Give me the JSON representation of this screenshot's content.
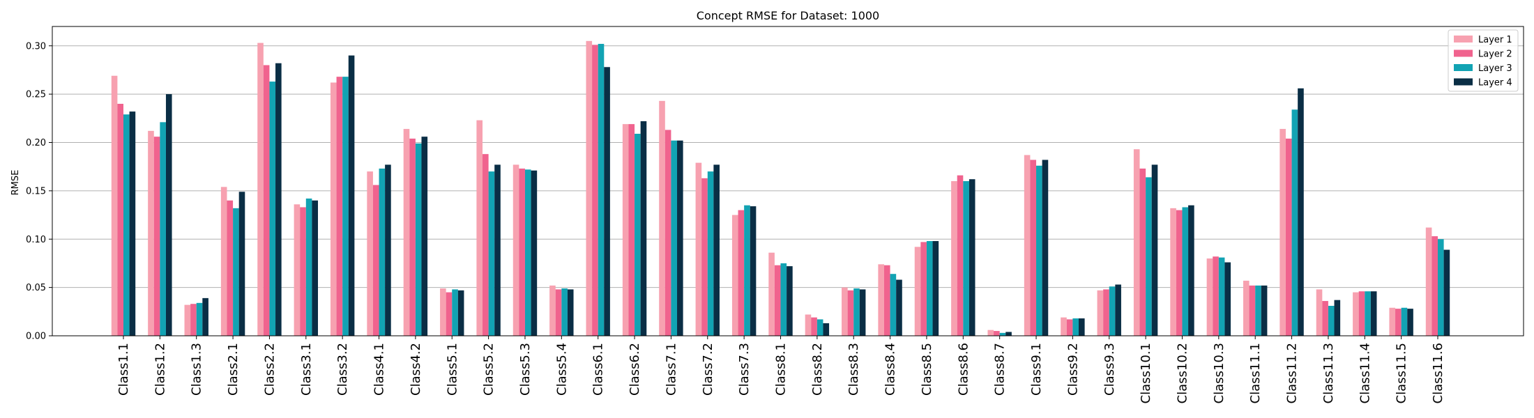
{
  "chart_data": {
    "type": "bar",
    "title": "Concept RMSE for Dataset: 1000",
    "xlabel": "",
    "ylabel": "RMSE",
    "ylim": [
      0,
      0.32
    ],
    "yticks": [
      "0.00",
      "0.05",
      "0.10",
      "0.15",
      "0.20",
      "0.25",
      "0.30"
    ],
    "grid": true,
    "legend_position": "top-right",
    "categories": [
      "Class1.1",
      "Class1.2",
      "Class1.3",
      "Class2.1",
      "Class2.2",
      "Class3.1",
      "Class3.2",
      "Class4.1",
      "Class4.2",
      "Class5.1",
      "Class5.2",
      "Class5.3",
      "Class5.4",
      "Class6.1",
      "Class6.2",
      "Class7.1",
      "Class7.2",
      "Class7.3",
      "Class8.1",
      "Class8.2",
      "Class8.3",
      "Class8.4",
      "Class8.5",
      "Class8.6",
      "Class8.7",
      "Class9.1",
      "Class9.2",
      "Class9.3",
      "Class10.1",
      "Class10.2",
      "Class10.3",
      "Class11.1",
      "Class11.2",
      "Class11.3",
      "Class11.4",
      "Class11.5",
      "Class11.6"
    ],
    "series": [
      {
        "name": "Layer 1",
        "color": "#f7a1b0",
        "values": [
          0.269,
          0.212,
          0.032,
          0.154,
          0.303,
          0.136,
          0.262,
          0.17,
          0.214,
          0.049,
          0.223,
          0.177,
          0.052,
          0.305,
          0.219,
          0.243,
          0.179,
          0.125,
          0.086,
          0.022,
          0.05,
          0.074,
          0.092,
          0.16,
          0.006,
          0.187,
          0.019,
          0.047,
          0.193,
          0.132,
          0.08,
          0.057,
          0.214,
          0.048,
          0.045,
          0.029,
          0.112
        ]
      },
      {
        "name": "Layer 2",
        "color": "#f0638e",
        "values": [
          0.24,
          0.206,
          0.033,
          0.14,
          0.28,
          0.133,
          0.268,
          0.156,
          0.204,
          0.045,
          0.188,
          0.173,
          0.048,
          0.301,
          0.219,
          0.213,
          0.163,
          0.13,
          0.073,
          0.019,
          0.047,
          0.073,
          0.097,
          0.166,
          0.005,
          0.182,
          0.017,
          0.048,
          0.173,
          0.13,
          0.082,
          0.052,
          0.204,
          0.036,
          0.046,
          0.028,
          0.103
        ]
      },
      {
        "name": "Layer 3",
        "color": "#12a3b3",
        "values": [
          0.229,
          0.221,
          0.034,
          0.132,
          0.263,
          0.142,
          0.268,
          0.173,
          0.199,
          0.048,
          0.17,
          0.172,
          0.049,
          0.302,
          0.209,
          0.202,
          0.17,
          0.135,
          0.075,
          0.017,
          0.049,
          0.064,
          0.098,
          0.16,
          0.003,
          0.176,
          0.018,
          0.051,
          0.164,
          0.133,
          0.081,
          0.052,
          0.234,
          0.031,
          0.046,
          0.029,
          0.1
        ]
      },
      {
        "name": "Layer 4",
        "color": "#0a2e45",
        "values": [
          0.232,
          0.25,
          0.039,
          0.149,
          0.282,
          0.14,
          0.29,
          0.177,
          0.206,
          0.047,
          0.177,
          0.171,
          0.048,
          0.278,
          0.222,
          0.202,
          0.177,
          0.134,
          0.072,
          0.013,
          0.048,
          0.058,
          0.098,
          0.162,
          0.004,
          0.182,
          0.018,
          0.053,
          0.177,
          0.135,
          0.076,
          0.052,
          0.256,
          0.037,
          0.046,
          0.028,
          0.089
        ]
      }
    ]
  }
}
